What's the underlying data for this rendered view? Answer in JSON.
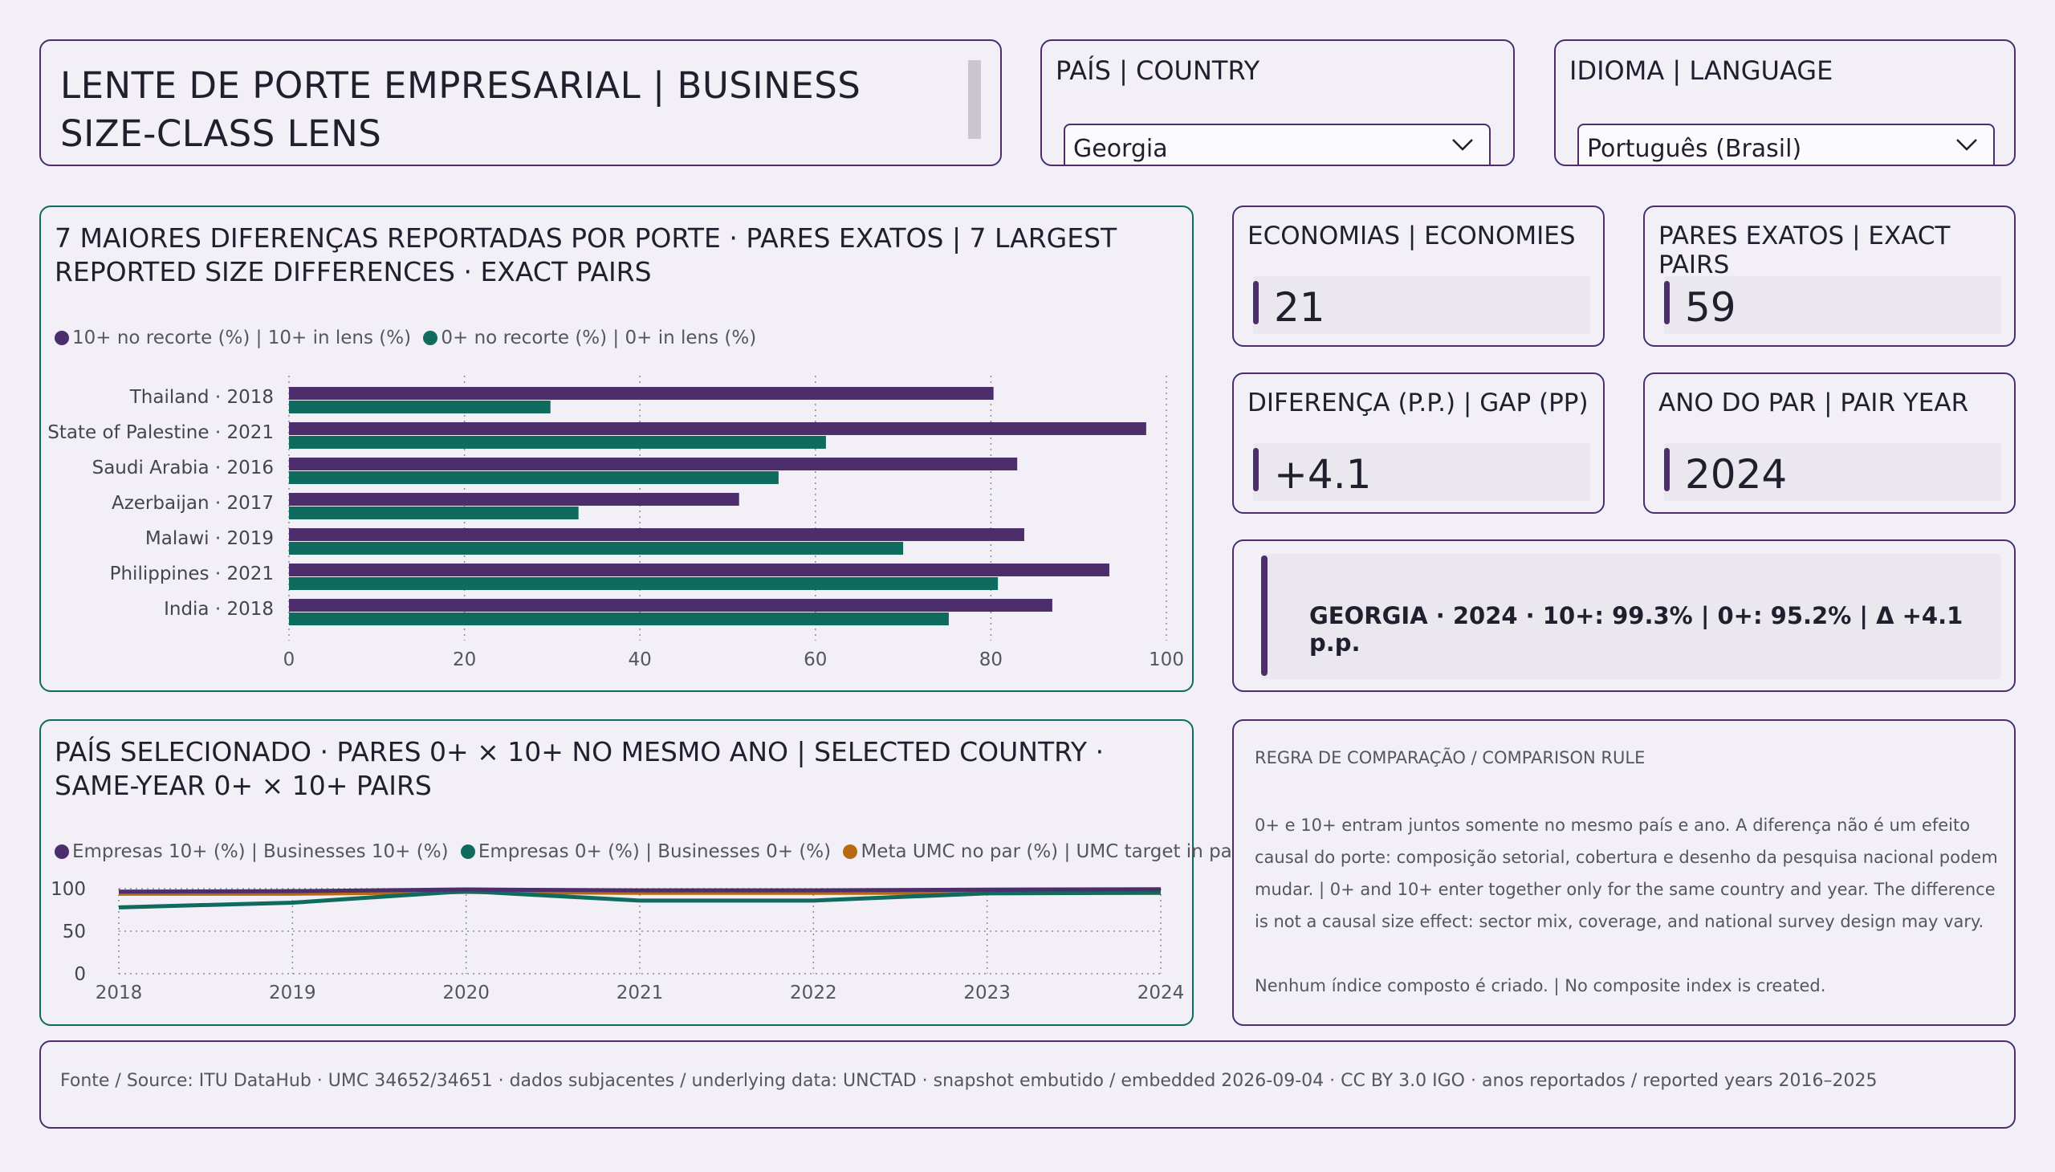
{
  "title": "LENTE DE PORTE EMPRESARIAL | BUSINESS SIZE-CLASS LENS",
  "country_slicer": {
    "title": "PAÍS | COUNTRY",
    "selected": "Georgia"
  },
  "language_slicer": {
    "title": "IDIOMA | LANGUAGE",
    "selected": "Português (Brasil)"
  },
  "kpis": {
    "economies": {
      "label": "ECONOMIAS | ECONOMIES",
      "value": "21"
    },
    "pairs": {
      "label": "PARES EXATOS | EXACT PAIRS",
      "value": "59"
    },
    "gap": {
      "label": "DIFERENÇA (P.P.) | GAP (PP)",
      "value": "+4.1"
    },
    "year": {
      "label": "ANO DO PAR | PAIR YEAR",
      "value": "2024"
    }
  },
  "summary": "GEORGIA · 2024 · 10+: 99.3% | 0+: 95.2% | Δ +4.1 p.p.",
  "rule": {
    "heading": "REGRA DE COMPARAÇÃO / COMPARISON RULE",
    "para1": "0+ e 10+ entram juntos somente no mesmo país e ano. A diferença não é um efeito causal do porte: composição setorial, cobertura e desenho da pesquisa nacional podem mudar. | 0+ and 10+ enter together only for the same country and year. The difference is not a causal size effect: sector mix, coverage, and national survey design may vary.",
    "para2": "Nenhum índice composto é criado. | No composite index is created."
  },
  "footer": "Fonte / Source: ITU DataHub · UMC 34652/34651 · dados subjacentes / underlying data: UNCTAD · snapshot embutido / embedded 2026-09-04 · CC BY 3.0 IGO · anos reportados / reported years 2016–2025",
  "colors": {
    "purple": "#4b2e6b",
    "green": "#0f6b5e",
    "orange": "#b86a12"
  },
  "chart_data": [
    {
      "type": "bar",
      "orientation": "horizontal",
      "title": "7 MAIORES DIFERENÇAS REPORTADAS POR PORTE · PARES EXATOS | 7 LARGEST REPORTED SIZE DIFFERENCES · EXACT PAIRS",
      "categories": [
        "Thailand · 2018",
        "State of Palestine · 2021",
        "Saudi Arabia · 2016",
        "Azerbaijan · 2017",
        "Malawi · 2019",
        "Philippines · 2021",
        "India · 2018"
      ],
      "series": [
        {
          "name": "10+ no recorte (%) | 10+ in lens (%)",
          "color": "#4b2e6b",
          "values": [
            80.3,
            97.7,
            83.0,
            51.3,
            83.8,
            93.5,
            87.0
          ]
        },
        {
          "name": "0+ no recorte (%) | 0+ in lens (%)",
          "color": "#0f6b5e",
          "values": [
            29.8,
            61.2,
            55.8,
            33.0,
            70.0,
            80.8,
            75.2
          ]
        }
      ],
      "xlim": [
        0,
        100
      ],
      "xticks": [
        0,
        20,
        40,
        60,
        80,
        100
      ],
      "grid": true,
      "legend": "top-left"
    },
    {
      "type": "line",
      "title": "PAÍS SELECIONADO · PARES 0+ × 10+ NO MESMO ANO | SELECTED COUNTRY · SAME-YEAR 0+ × 10+ PAIRS",
      "x": [
        2018,
        2019,
        2020,
        2021,
        2022,
        2023,
        2024
      ],
      "series": [
        {
          "name": "Empresas 10+ (%) | Businesses 10+ (%)",
          "color": "#4b2e6b",
          "values": [
            96.5,
            97.0,
            99.0,
            98.0,
            98.0,
            98.8,
            99.3
          ]
        },
        {
          "name": "Empresas 0+ (%) | Businesses 0+ (%)",
          "color": "#0f6b5e",
          "values": [
            78.0,
            83.5,
            97.0,
            86.0,
            86.0,
            94.5,
            95.2
          ]
        },
        {
          "name": "Meta UMC no par (%) | UMC target in pair (%)",
          "color": "#b86a12",
          "values": [
            94.0,
            94.0,
            96.0,
            95.0,
            95.0,
            95.0,
            95.0
          ]
        }
      ],
      "ylim": [
        0,
        100
      ],
      "yticks": [
        0,
        50,
        100
      ],
      "grid": true,
      "legend": "top-left"
    }
  ]
}
